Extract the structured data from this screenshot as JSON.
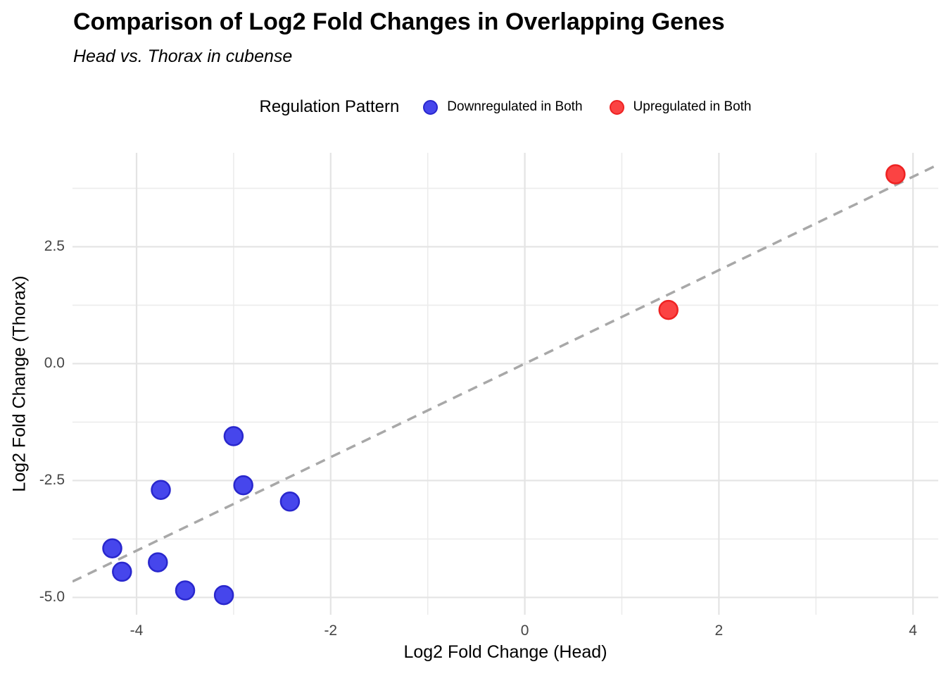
{
  "title": "Comparison of Log2 Fold Changes in Overlapping Genes",
  "subtitle": "Head vs. Thorax in cubense",
  "legend": {
    "title": "Regulation Pattern",
    "items": [
      {
        "label": "Downregulated in Both",
        "fill": "#4646ec",
        "stroke": "#2927cd"
      },
      {
        "label": "Upregulated in Both",
        "fill": "#fb4343",
        "stroke": "#ee2222"
      }
    ]
  },
  "colors": {
    "grid_major": "#e4e4e4",
    "grid_minor": "#ececec",
    "identity_line": "#a8a8a8",
    "tick_text": "#454545",
    "downregulated_fill": "#4646ec",
    "downregulated_stroke": "#2927cd",
    "upregulated_fill": "#fb4343",
    "upregulated_stroke": "#ee2222"
  },
  "chart_data": {
    "type": "scatter",
    "title": "Comparison of Log2 Fold Changes in Overlapping Genes",
    "subtitle": "Head vs. Thorax in cubense",
    "xlabel": "Log2 Fold Change (Head)",
    "ylabel": "Log2 Fold Change (Thorax)",
    "xlim": [
      -4.66,
      4.26
    ],
    "ylim": [
      -5.37,
      4.51
    ],
    "grid": true,
    "legend_position": "top",
    "x_ticks": [
      {
        "v": -4,
        "label": "-4"
      },
      {
        "v": -2,
        "label": "-2"
      },
      {
        "v": 0,
        "label": "0"
      },
      {
        "v": 2,
        "label": "2"
      },
      {
        "v": 4,
        "label": "4"
      }
    ],
    "y_ticks": [
      {
        "v": 2.5,
        "label": "2.5"
      },
      {
        "v": 0,
        "label": "0.0"
      },
      {
        "v": -2.5,
        "label": "-2.5"
      },
      {
        "v": -5,
        "label": "-5.0"
      }
    ],
    "x_minor": [
      -3,
      -1,
      1,
      3
    ],
    "y_minor": [
      3.75,
      1.25,
      -1.25,
      -3.75
    ],
    "identity_line": {
      "slope": 1,
      "intercept": 0,
      "style": "dashed",
      "color": "#a8a8a8"
    },
    "point_radius": 13,
    "series": [
      {
        "name": "Downregulated in Both",
        "fill": "#4646ec",
        "stroke": "#2927cd",
        "points": [
          [
            -3.0,
            -1.55
          ],
          [
            -3.75,
            -2.7
          ],
          [
            -2.9,
            -2.6
          ],
          [
            -2.42,
            -2.95
          ],
          [
            -4.25,
            -3.95
          ],
          [
            -3.78,
            -4.25
          ],
          [
            -4.15,
            -4.45
          ],
          [
            -3.5,
            -4.85
          ],
          [
            -3.1,
            -4.95
          ]
        ]
      },
      {
        "name": "Upregulated in Both",
        "fill": "#fb4343",
        "stroke": "#ee2222",
        "points": [
          [
            1.48,
            1.15
          ],
          [
            3.82,
            4.05
          ]
        ]
      }
    ]
  }
}
